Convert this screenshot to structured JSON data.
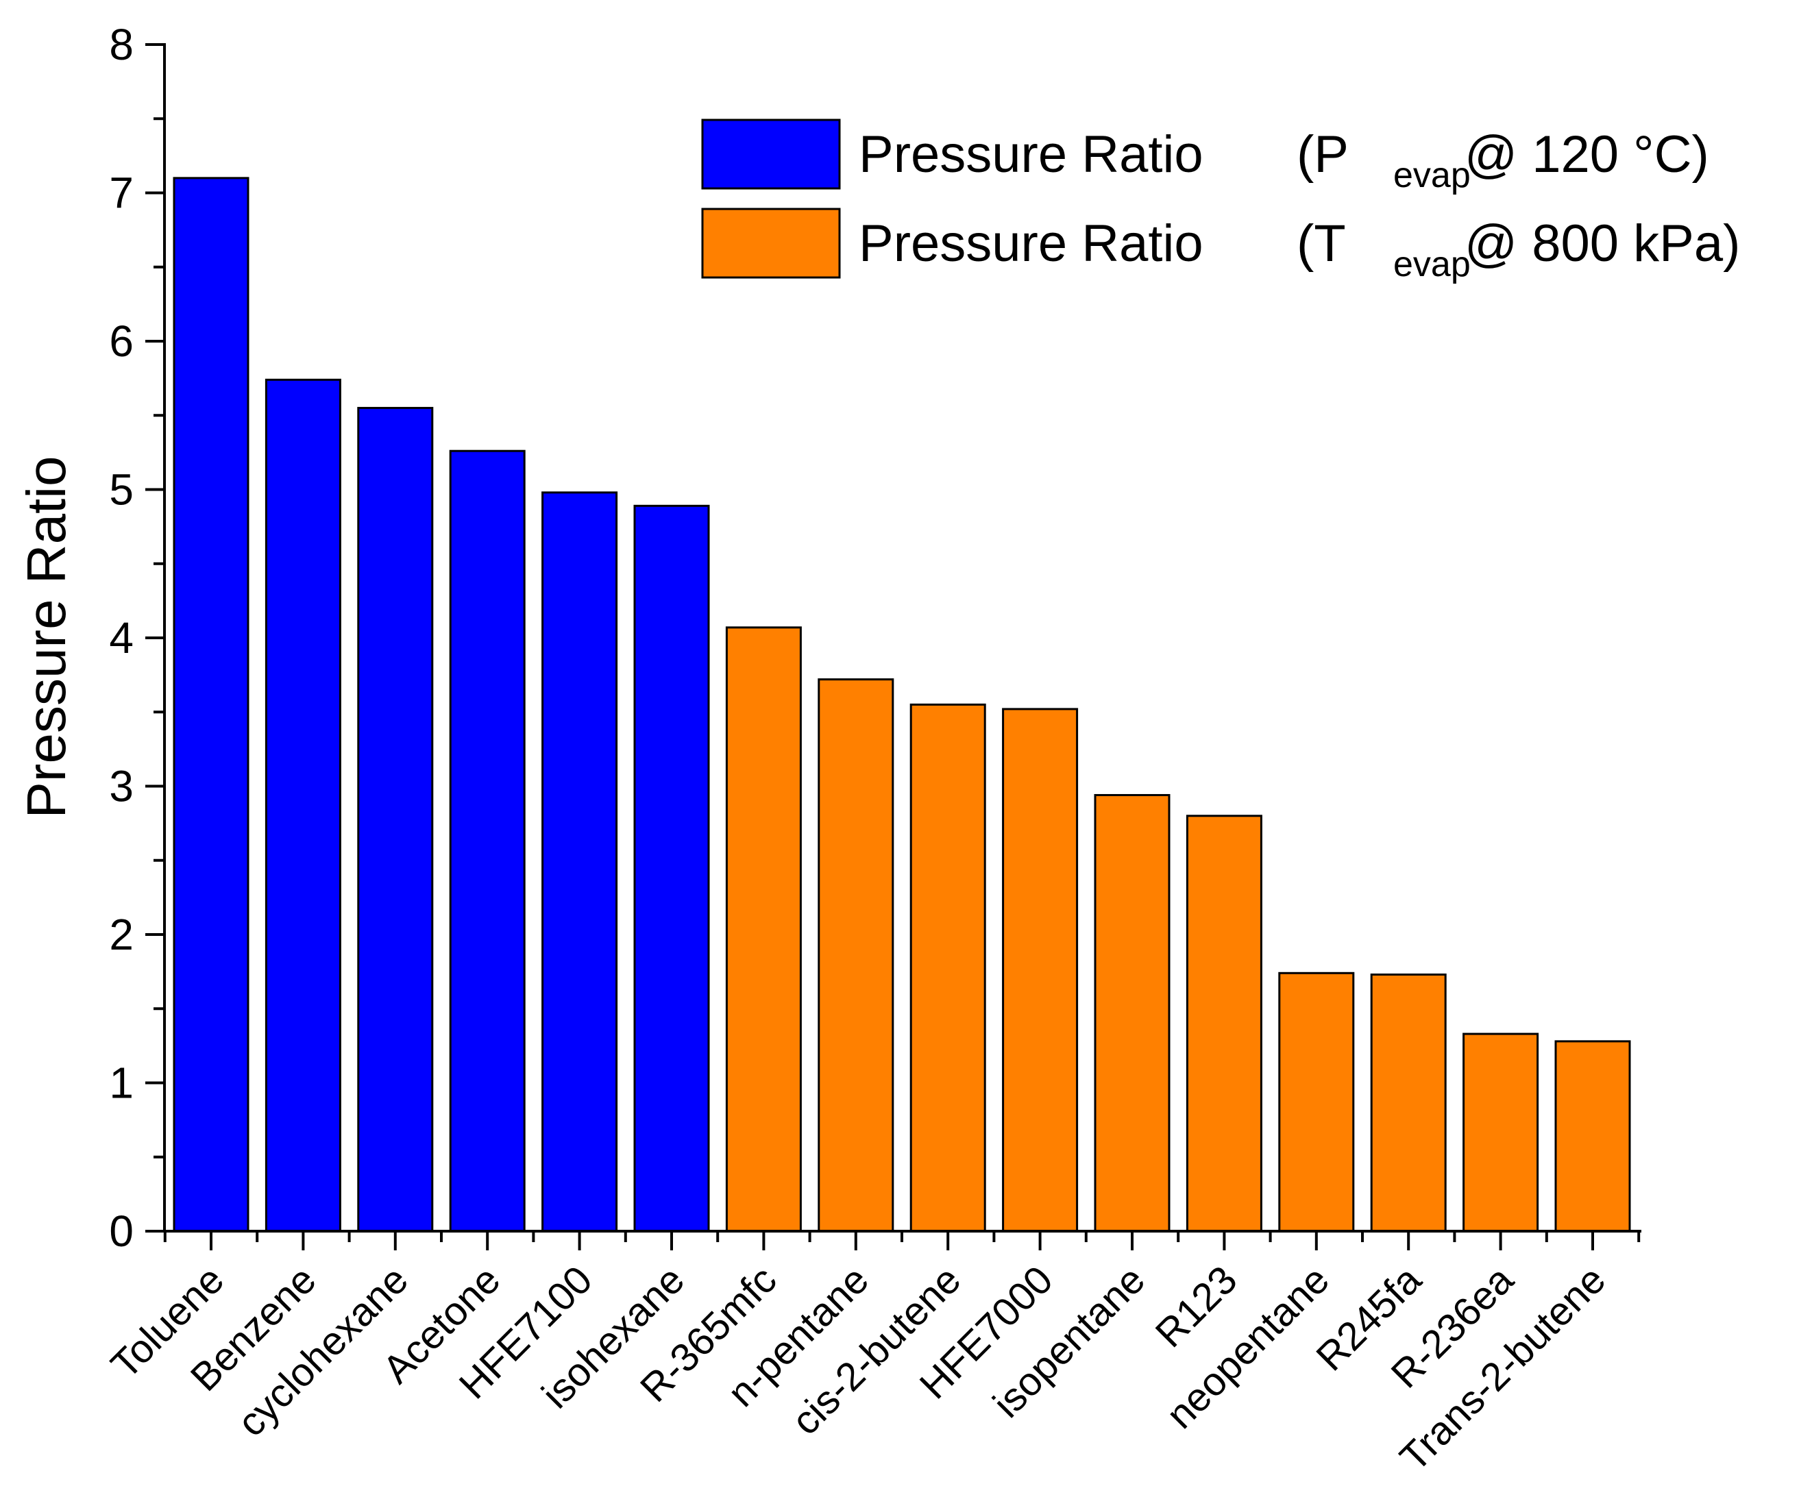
{
  "chart_data": {
    "type": "bar",
    "title": "",
    "xlabel": "",
    "ylabel": "Pressure Ratio",
    "ylim": [
      0,
      8
    ],
    "yticks": [
      "0",
      "1",
      "2",
      "3",
      "4",
      "5",
      "6",
      "7",
      "8"
    ],
    "grid": false,
    "legend_position": "top-right",
    "categories": [
      "Toluene",
      "Benzene",
      "cyclohexane",
      "Acetone",
      "HFE7100",
      "isohexane",
      "R-365mfc",
      "n-pentane",
      "cis-2-butene",
      "HFE7000",
      "isopentane",
      "R123",
      "neopentane",
      "R245fa",
      "R-236ea",
      "Trans-2-butene"
    ],
    "series": [
      {
        "name": "Pressure Ratio (Pevap @ 120 °C)",
        "legend_main": "Pressure Ratio",
        "legend_open": "(P",
        "legend_sub": "evap",
        "legend_close": "@ 120 °C)",
        "color": "#0000ff",
        "values": [
          7.1,
          5.74,
          5.55,
          5.26,
          4.98,
          4.89,
          null,
          null,
          null,
          null,
          null,
          null,
          null,
          null,
          null,
          null
        ]
      },
      {
        "name": "Pressure Ratio (Tevap @ 800 kPa)",
        "legend_main": "Pressure Ratio",
        "legend_open": "(T",
        "legend_sub": "evap",
        "legend_close": "@ 800 kPa)",
        "color": "#ff8000",
        "values": [
          null,
          null,
          null,
          null,
          null,
          null,
          4.07,
          3.72,
          3.55,
          3.52,
          2.94,
          2.8,
          1.74,
          1.73,
          1.33,
          1.28
        ]
      }
    ]
  }
}
